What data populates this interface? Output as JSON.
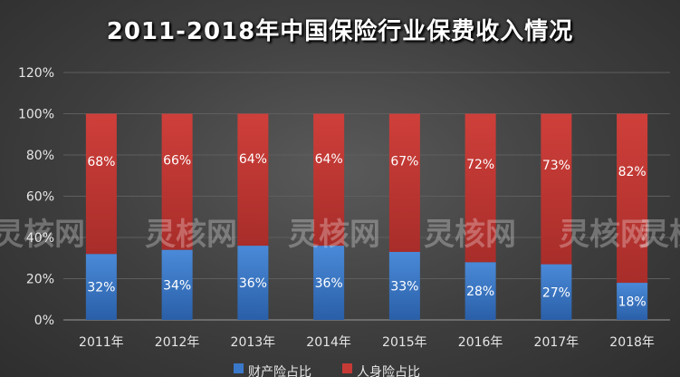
{
  "chart_data": {
    "type": "bar",
    "stacked": true,
    "percent_stacked": true,
    "title": "2011-2018年中国保险行业保费收入情况",
    "categories": [
      "2011年",
      "2012年",
      "2013年",
      "2014年",
      "2015年",
      "2016年",
      "2017年",
      "2018年"
    ],
    "series": [
      {
        "name": "财产险占比",
        "values": [
          32,
          34,
          36,
          36,
          33,
          28,
          27,
          18
        ],
        "labels": [
          "32%",
          "34%",
          "36%",
          "36%",
          "33%",
          "28%",
          "27%",
          "18%"
        ],
        "color": "#3a78c9"
      },
      {
        "name": "人身险占比",
        "values": [
          68,
          66,
          64,
          64,
          67,
          72,
          73,
          82
        ],
        "labels": [
          "68%",
          "66%",
          "64%",
          "64%",
          "67%",
          "72%",
          "73%",
          "82%"
        ],
        "color": "#c63a36"
      }
    ],
    "yticks": [
      "0%",
      "20%",
      "40%",
      "60%",
      "80%",
      "100%",
      "120%"
    ],
    "ylim": [
      0,
      120
    ],
    "grid": true,
    "legend": "bottom"
  },
  "watermark": "灵核网"
}
